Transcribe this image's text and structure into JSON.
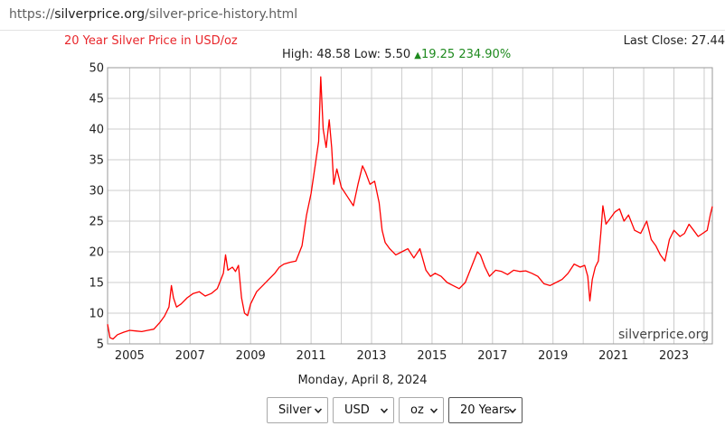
{
  "browser": {
    "url_scheme": "https://",
    "url_host": "silverprice.org",
    "url_path": "/silver-price-history.html"
  },
  "header": {
    "title": "20 Year Silver Price in USD/oz",
    "last_close_label": "Last Close:",
    "last_close_value": "27.44",
    "high_label": "High:",
    "high_value": "48.58",
    "low_label": "Low:",
    "low_value": "5.50",
    "change_value": "19.25",
    "change_percent": "234.90%"
  },
  "watermark": "silverprice.org",
  "date_label": "Monday, April 8, 2024",
  "controls": {
    "metal": "Silver",
    "currency": "USD",
    "unit": "oz",
    "range": "20 Years"
  },
  "colors": {
    "series": "#ff0000",
    "title": "#e8262b",
    "up": "#1e8a1e",
    "grid": "#cccccc"
  },
  "chart_data": {
    "type": "line",
    "title": "20 Year Silver Price in USD/oz",
    "xlabel": "",
    "ylabel": "",
    "xlim": [
      2004.27,
      2024.27
    ],
    "ylim": [
      5,
      50
    ],
    "yticks": [
      5,
      10,
      15,
      20,
      25,
      30,
      35,
      40,
      45,
      50
    ],
    "xticks": [
      "2005",
      "2007",
      "2009",
      "2011",
      "2013",
      "2015",
      "2017",
      "2019",
      "2021",
      "2023"
    ],
    "grid": true,
    "series": [
      {
        "name": "",
        "x": [
          2004.27,
          2004.35,
          2004.45,
          2004.6,
          2004.8,
          2005.0,
          2005.2,
          2005.4,
          2005.6,
          2005.8,
          2006.0,
          2006.15,
          2006.3,
          2006.38,
          2006.45,
          2006.55,
          2006.7,
          2006.9,
          2007.1,
          2007.3,
          2007.5,
          2007.7,
          2007.9,
          2008.1,
          2008.17,
          2008.25,
          2008.4,
          2008.5,
          2008.6,
          2008.7,
          2008.8,
          2008.9,
          2009.0,
          2009.2,
          2009.4,
          2009.6,
          2009.8,
          2009.95,
          2010.1,
          2010.3,
          2010.5,
          2010.7,
          2010.85,
          2011.0,
          2011.15,
          2011.25,
          2011.32,
          2011.4,
          2011.5,
          2011.6,
          2011.68,
          2011.75,
          2011.85,
          2012.0,
          2012.2,
          2012.4,
          2012.55,
          2012.7,
          2012.8,
          2012.95,
          2013.1,
          2013.25,
          2013.35,
          2013.45,
          2013.6,
          2013.8,
          2014.0,
          2014.2,
          2014.4,
          2014.6,
          2014.8,
          2014.95,
          2015.1,
          2015.3,
          2015.5,
          2015.7,
          2015.9,
          2016.1,
          2016.3,
          2016.5,
          2016.6,
          2016.75,
          2016.9,
          2017.1,
          2017.3,
          2017.5,
          2017.7,
          2017.9,
          2018.1,
          2018.3,
          2018.5,
          2018.7,
          2018.9,
          2019.1,
          2019.3,
          2019.5,
          2019.7,
          2019.9,
          2020.05,
          2020.15,
          2020.22,
          2020.3,
          2020.4,
          2020.5,
          2020.58,
          2020.65,
          2020.75,
          2020.9,
          2021.05,
          2021.2,
          2021.35,
          2021.5,
          2021.7,
          2021.9,
          2022.1,
          2022.25,
          2022.4,
          2022.55,
          2022.7,
          2022.85,
          2023.0,
          2023.2,
          2023.35,
          2023.5,
          2023.65,
          2023.8,
          2023.95,
          2024.1,
          2024.2,
          2024.27
        ],
        "y": [
          8.2,
          6.0,
          5.8,
          6.5,
          6.9,
          7.2,
          7.1,
          7.0,
          7.2,
          7.4,
          8.5,
          9.5,
          11.0,
          14.5,
          12.5,
          11.0,
          11.5,
          12.5,
          13.2,
          13.5,
          12.8,
          13.2,
          14.0,
          16.5,
          19.5,
          17.0,
          17.5,
          16.8,
          17.8,
          12.5,
          10.0,
          9.6,
          11.5,
          13.5,
          14.5,
          15.5,
          16.5,
          17.5,
          18.0,
          18.3,
          18.5,
          21.0,
          26.0,
          29.5,
          34.5,
          38.0,
          48.5,
          40.0,
          37.0,
          41.5,
          37.0,
          31.0,
          33.5,
          30.5,
          29.0,
          27.5,
          31.0,
          34.0,
          33.0,
          31.0,
          31.5,
          28.0,
          23.5,
          21.5,
          20.5,
          19.5,
          20.0,
          20.5,
          19.0,
          20.5,
          17.0,
          16.0,
          16.5,
          16.0,
          15.0,
          14.5,
          14.0,
          15.0,
          17.5,
          20.0,
          19.5,
          17.5,
          16.0,
          17.0,
          16.8,
          16.3,
          17.0,
          16.8,
          16.9,
          16.5,
          16.0,
          14.8,
          14.5,
          15.0,
          15.5,
          16.5,
          18.0,
          17.5,
          17.8,
          16.0,
          12.0,
          15.5,
          17.5,
          18.5,
          23.0,
          27.5,
          24.5,
          25.5,
          26.5,
          27.0,
          25.0,
          26.0,
          23.5,
          23.0,
          25.0,
          22.0,
          21.0,
          19.5,
          18.5,
          22.0,
          23.5,
          22.5,
          23.0,
          24.5,
          23.5,
          22.5,
          23.0,
          23.5,
          26.0,
          27.4
        ]
      }
    ]
  }
}
